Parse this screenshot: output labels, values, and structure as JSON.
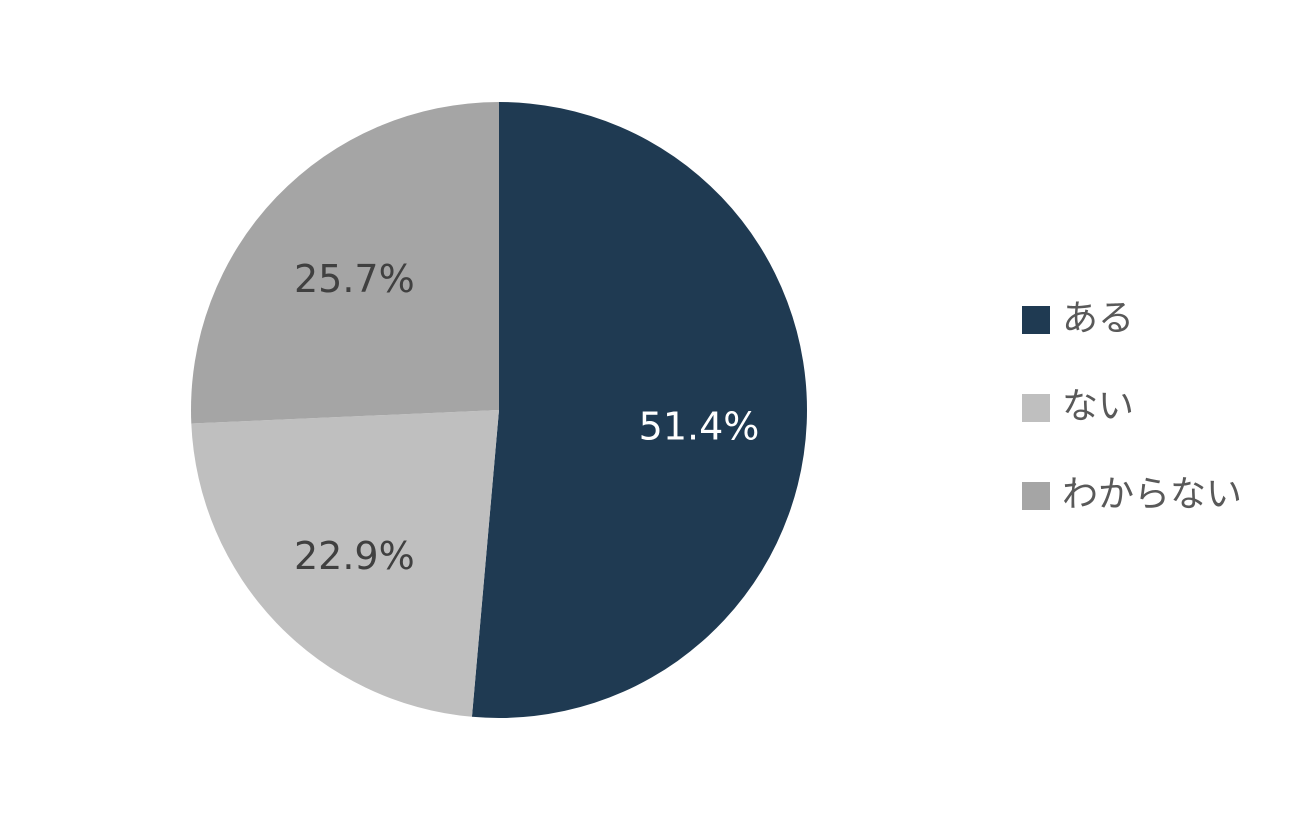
{
  "chart_data": {
    "type": "pie",
    "categories": [
      "ある",
      "ない",
      "わからない"
    ],
    "values": [
      51.4,
      22.9,
      25.7
    ],
    "value_labels": [
      "51.4%",
      "22.9%",
      "25.7%"
    ],
    "colors": [
      "#1f3a52",
      "#bfbfbf",
      "#a5a5a5"
    ],
    "legend": "right"
  }
}
